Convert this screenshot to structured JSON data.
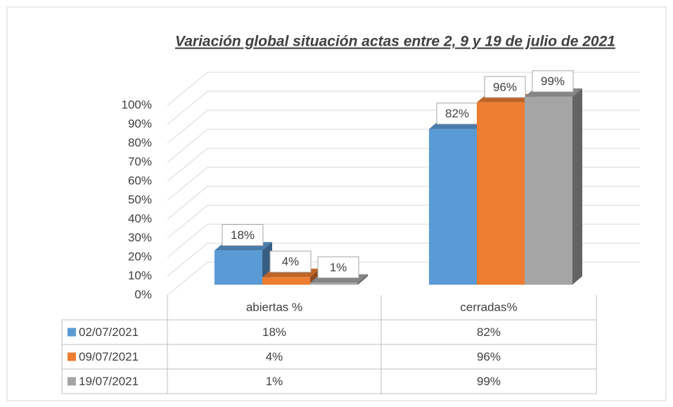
{
  "chart_data": {
    "type": "bar3d",
    "title": "Variación global situación actas entre 2, 9 y 19 de julio de 2021",
    "categories": [
      "abiertas %",
      "cerradas%"
    ],
    "series": [
      {
        "name": "02/07/2021",
        "color": "#5b9bd5",
        "values": [
          18,
          82
        ],
        "value_labels": [
          "18%",
          "82%"
        ]
      },
      {
        "name": "09/07/2021",
        "color": "#ed7d31",
        "values": [
          4,
          96
        ],
        "value_labels": [
          "4%",
          "96%"
        ]
      },
      {
        "name": "19/07/2021",
        "color": "#a5a5a5",
        "values": [
          1,
          99
        ],
        "value_labels": [
          "1%",
          "99%"
        ]
      }
    ],
    "ylim": [
      0,
      100
    ],
    "yticks": [
      {
        "value": 0,
        "label": "0%"
      },
      {
        "value": 10,
        "label": "10%"
      },
      {
        "value": 20,
        "label": "20%"
      },
      {
        "value": 30,
        "label": "30%"
      },
      {
        "value": 40,
        "label": "40%"
      },
      {
        "value": 50,
        "label": "50%"
      },
      {
        "value": 60,
        "label": "60%"
      },
      {
        "value": 70,
        "label": "70%"
      },
      {
        "value": 80,
        "label": "80%"
      },
      {
        "value": 90,
        "label": "90%"
      },
      {
        "value": 100,
        "label": "100%"
      }
    ],
    "grid": true,
    "data_table": true
  }
}
